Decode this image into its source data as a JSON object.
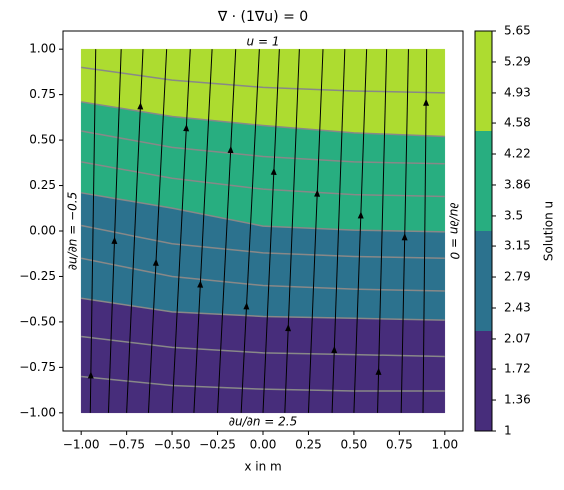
{
  "chart_data": {
    "type": "contour",
    "title": "∇ · (1∇u) = 0",
    "x_label": "x in m",
    "xlim": [
      -1.1,
      1.1
    ],
    "ylim": [
      -1.1,
      1.1
    ],
    "xticks": [
      {
        "value": -1,
        "label": "−1.00"
      },
      {
        "value": -0.75,
        "label": "−0.75"
      },
      {
        "value": -0.5,
        "label": "−0.50"
      },
      {
        "value": -0.25,
        "label": "−0.25"
      },
      {
        "value": 0,
        "label": "0.00"
      },
      {
        "value": 0.25,
        "label": "0.25"
      },
      {
        "value": 0.5,
        "label": "0.50"
      },
      {
        "value": 0.75,
        "label": "0.75"
      },
      {
        "value": 1,
        "label": "1.00"
      }
    ],
    "yticks": [
      {
        "value": -1,
        "label": "−1.00"
      },
      {
        "value": -0.75,
        "label": "−0.75"
      },
      {
        "value": -0.5,
        "label": "−0.50"
      },
      {
        "value": -0.25,
        "label": "−0.25"
      },
      {
        "value": 0,
        "label": "0.00"
      },
      {
        "value": 0.25,
        "label": "0.25"
      },
      {
        "value": 0.5,
        "label": "0.50"
      },
      {
        "value": 0.75,
        "label": "0.75"
      },
      {
        "value": 1,
        "label": "1.00"
      }
    ],
    "domain": [
      -1,
      1
    ],
    "levels": [
      1,
      2.1625,
      3.325,
      4.4875,
      5.65
    ],
    "colors": [
      "#472d7b",
      "#2c728e",
      "#28ae80",
      "#addc30"
    ],
    "boundary_x": [
      -1,
      -0.5,
      0,
      0.5,
      1
    ],
    "boundaries": [
      [
        -0.37,
        -0.445,
        -0.47,
        -0.48,
        -0.49
      ],
      [
        0.21,
        0.126,
        0.027,
        0.005,
        -0.005
      ],
      [
        0.71,
        0.63,
        0.58,
        0.54,
        0.52
      ]
    ],
    "line_color": "#888888",
    "contour_lines": [
      [
        0.9,
        0.83,
        0.79,
        0.77,
        0.76
      ],
      [
        0.71,
        0.63,
        0.58,
        0.54,
        0.52
      ],
      [
        0.55,
        0.46,
        0.41,
        0.38,
        0.37
      ],
      [
        0.38,
        0.29,
        0.23,
        0.2,
        0.19
      ],
      [
        0.21,
        0.126,
        0.027,
        0.005,
        -0.005
      ],
      [
        0.03,
        -0.07,
        -0.12,
        -0.14,
        -0.15
      ],
      [
        -0.15,
        -0.25,
        -0.3,
        -0.32,
        -0.33
      ],
      [
        -0.37,
        -0.445,
        -0.47,
        -0.48,
        -0.49
      ],
      [
        -0.58,
        -0.64,
        -0.67,
        -0.68,
        -0.69
      ],
      [
        -0.8,
        -0.85,
        -0.87,
        -0.88,
        -0.88
      ]
    ],
    "streamlines": [
      [
        -0.95,
        -0.92
      ],
      [
        -0.85,
        -0.78
      ],
      [
        -0.75,
        -0.66
      ],
      [
        -0.63,
        -0.53
      ],
      [
        -0.5,
        -0.4
      ],
      [
        -0.38,
        -0.28
      ],
      [
        -0.25,
        -0.15
      ],
      [
        -0.12,
        -0.02
      ],
      [
        0,
        0.09
      ],
      [
        0.12,
        0.2
      ],
      [
        0.25,
        0.33
      ],
      [
        0.38,
        0.45
      ],
      [
        0.5,
        0.57
      ],
      [
        0.63,
        0.68
      ],
      [
        0.76,
        0.8
      ],
      [
        0.88,
        0.9
      ]
    ],
    "annotations": {
      "top": "u = 1",
      "bottom": "∂u/∂n = 2.5",
      "left": "∂u/∂n = −0.5",
      "right": "∂u/∂n = 0"
    },
    "colorbar": {
      "label": "Solution u",
      "clim": [
        1,
        5.65
      ],
      "ticks": [
        1,
        1.36,
        1.72,
        2.07,
        2.43,
        2.79,
        3.15,
        3.5,
        3.86,
        4.22,
        4.58,
        4.93,
        5.29,
        5.65
      ]
    }
  }
}
